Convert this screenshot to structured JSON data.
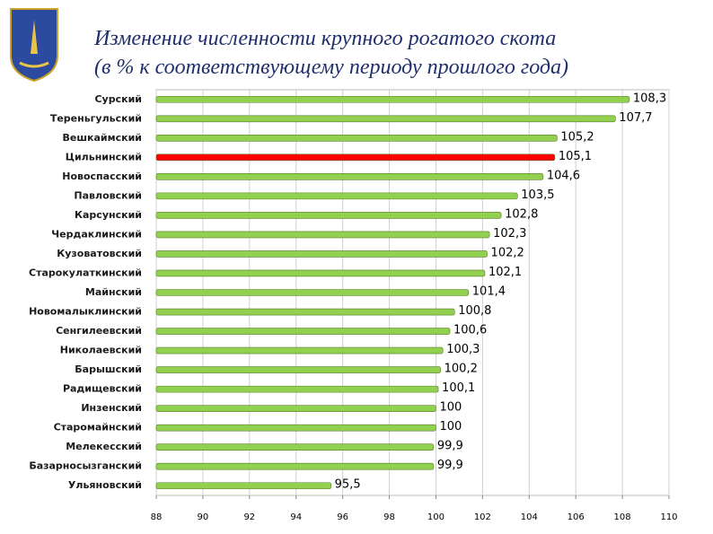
{
  "chart_data": {
    "type": "hbar",
    "title": "Изменение численности  крупного рогатого скота",
    "subtitle": "(в % к соответствующему периоду прошлого года)",
    "categories": [
      "Сурский",
      "Тереньгульский",
      "Вешкаймский",
      "Цильнинский",
      "Новоспасский",
      "Павловский",
      "Карсунский",
      "Чердаклинский",
      "Кузоватовский",
      "Старокулаткинский",
      "Майнский",
      "Новомалыклинский",
      "Сенгилеевский",
      "Николаевский",
      "Барышский",
      "Радищевский",
      "Инзенский",
      "Старомайнский",
      "Мелекесский",
      "Базарносызганский",
      "Ульяновский"
    ],
    "values": [
      108.3,
      107.7,
      105.2,
      105.1,
      104.6,
      103.5,
      102.8,
      102.3,
      102.2,
      102.1,
      101.4,
      100.8,
      100.6,
      100.3,
      100.2,
      100.1,
      100,
      100,
      99.9,
      99.9,
      95.5
    ],
    "value_labels": [
      "108,3",
      "107,7",
      "105,2",
      "105,1",
      "104,6",
      "103,5",
      "102,8",
      "102,3",
      "102,2",
      "102,1",
      "101,4",
      "100,8",
      "100,6",
      "100,3",
      "100,2",
      "100,1",
      "100",
      "100",
      "99,9",
      "99,9",
      "95,5"
    ],
    "colors": [
      "#92d050",
      "#92d050",
      "#92d050",
      "#ff0000",
      "#92d050",
      "#92d050",
      "#92d050",
      "#92d050",
      "#92d050",
      "#92d050",
      "#92d050",
      "#92d050",
      "#92d050",
      "#92d050",
      "#92d050",
      "#92d050",
      "#92d050",
      "#92d050",
      "#92d050",
      "#92d050",
      "#92d050"
    ],
    "xlim": [
      88,
      110
    ],
    "xticks": [
      88,
      90,
      92,
      94,
      96,
      98,
      100,
      102,
      104,
      106,
      108,
      110
    ],
    "grid": true
  }
}
